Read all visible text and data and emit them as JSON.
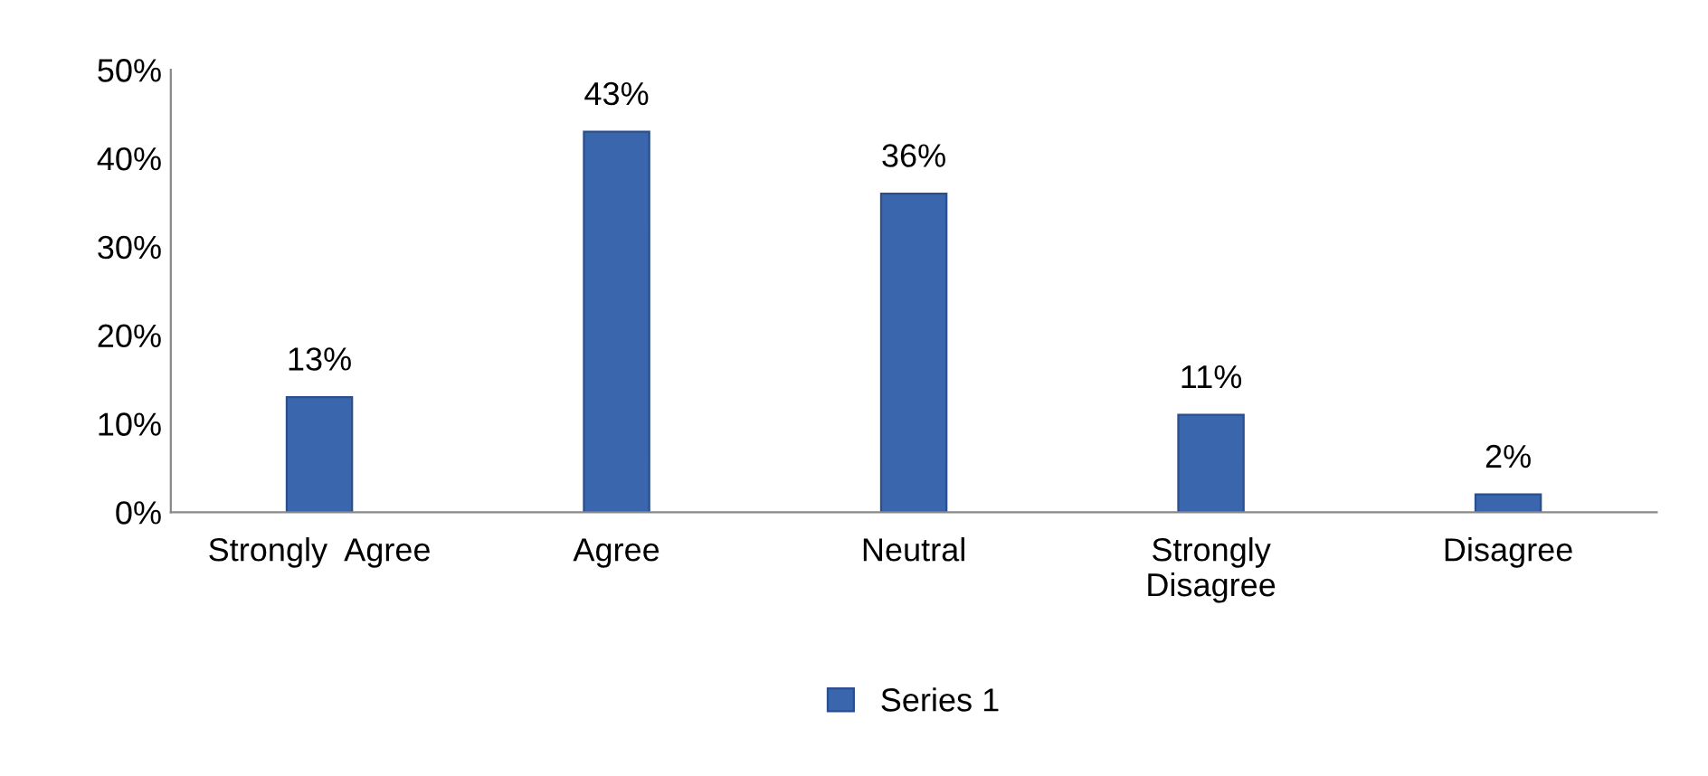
{
  "chart_data": {
    "type": "bar",
    "categories": [
      "Strongly  Agree",
      "Agree",
      "Neutral",
      "Strongly\nDisagree",
      "Disagree"
    ],
    "series": [
      {
        "name": "Series 1",
        "color": "#3a66ae",
        "values": [
          13,
          43,
          36,
          11,
          2
        ],
        "value_labels": [
          "13%",
          "43%",
          "36%",
          "11%",
          "2%"
        ]
      }
    ],
    "ylim": [
      0,
      50
    ],
    "yticks": [
      {
        "value": 0,
        "label": "0%"
      },
      {
        "value": 10,
        "label": "10%"
      },
      {
        "value": 20,
        "label": "20%"
      },
      {
        "value": 30,
        "label": "30%"
      },
      {
        "value": 40,
        "label": "40%"
      },
      {
        "value": 50,
        "label": "50%"
      }
    ],
    "grid": false,
    "legend": "bottom"
  }
}
